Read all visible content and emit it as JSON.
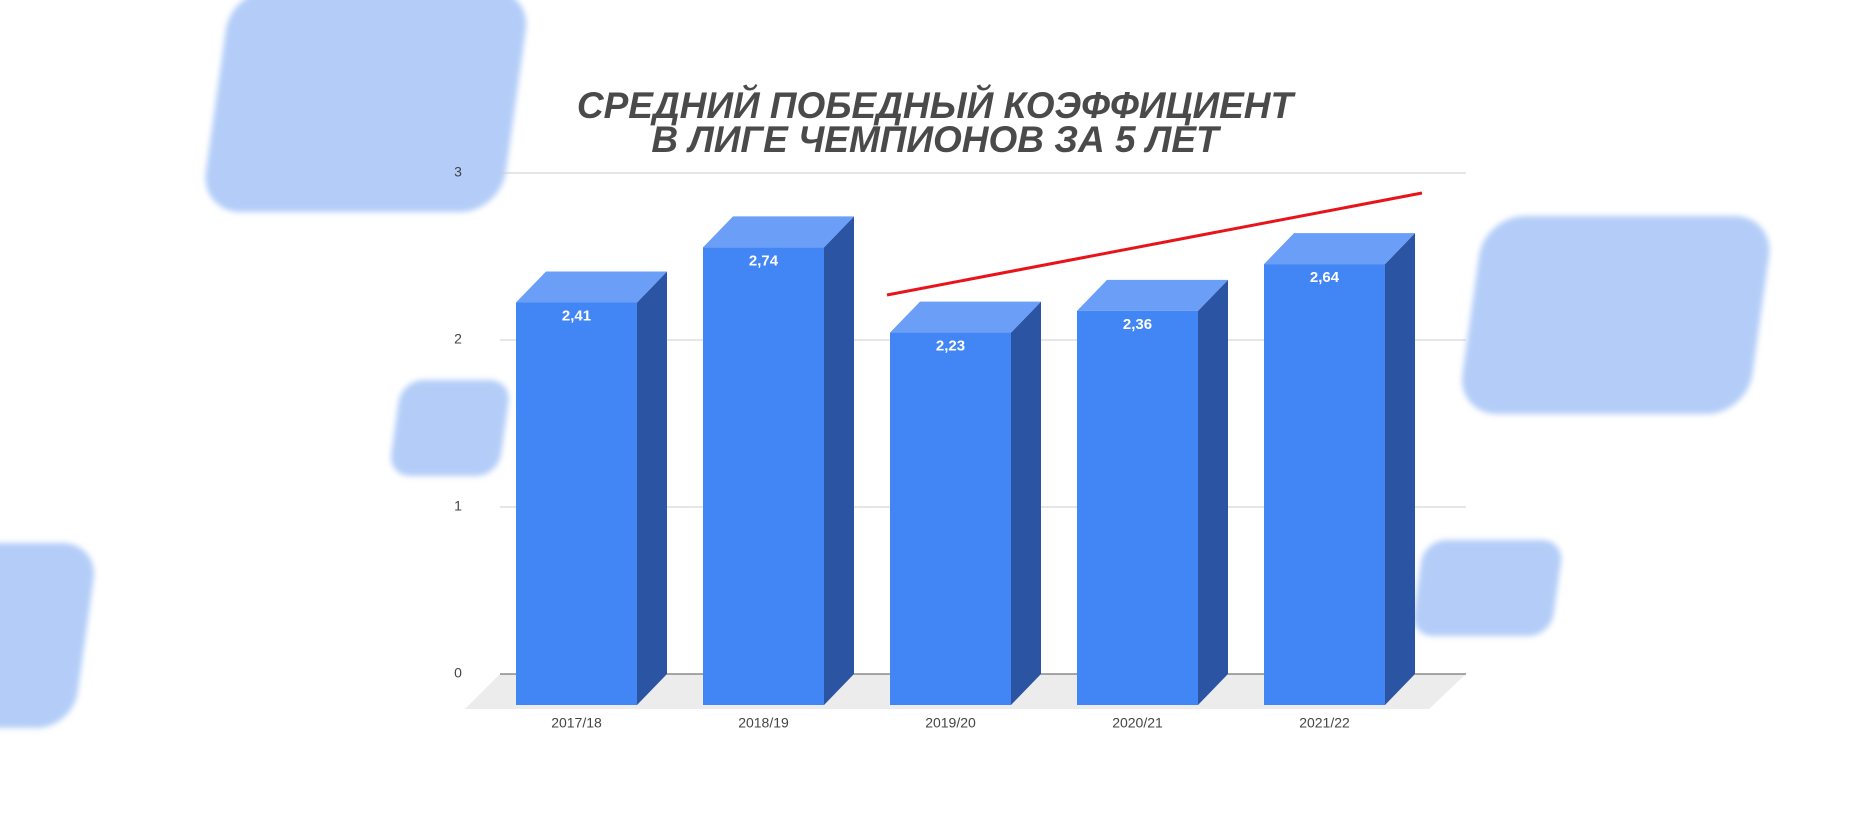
{
  "chart_data": {
    "type": "bar3d",
    "title": "СРЕДНИЙ ПОБЕДНЫЙ КОЭФФИЦИЕНТ",
    "subtitle": "В ЛИГЕ ЧЕМПИОНОВ ЗА 5 ЛЕТ",
    "categories": [
      "2017/18",
      "2018/19",
      "2019/20",
      "2020/21",
      "2021/22"
    ],
    "values": [
      2.41,
      2.74,
      2.23,
      2.36,
      2.64
    ],
    "value_labels": [
      "2,41",
      "2,74",
      "2,23",
      "2,36",
      "2,64"
    ],
    "color": "#4285f4",
    "ylim": [
      0,
      3
    ],
    "yticks": [
      0,
      1,
      2,
      3
    ],
    "grid": true
  }
}
